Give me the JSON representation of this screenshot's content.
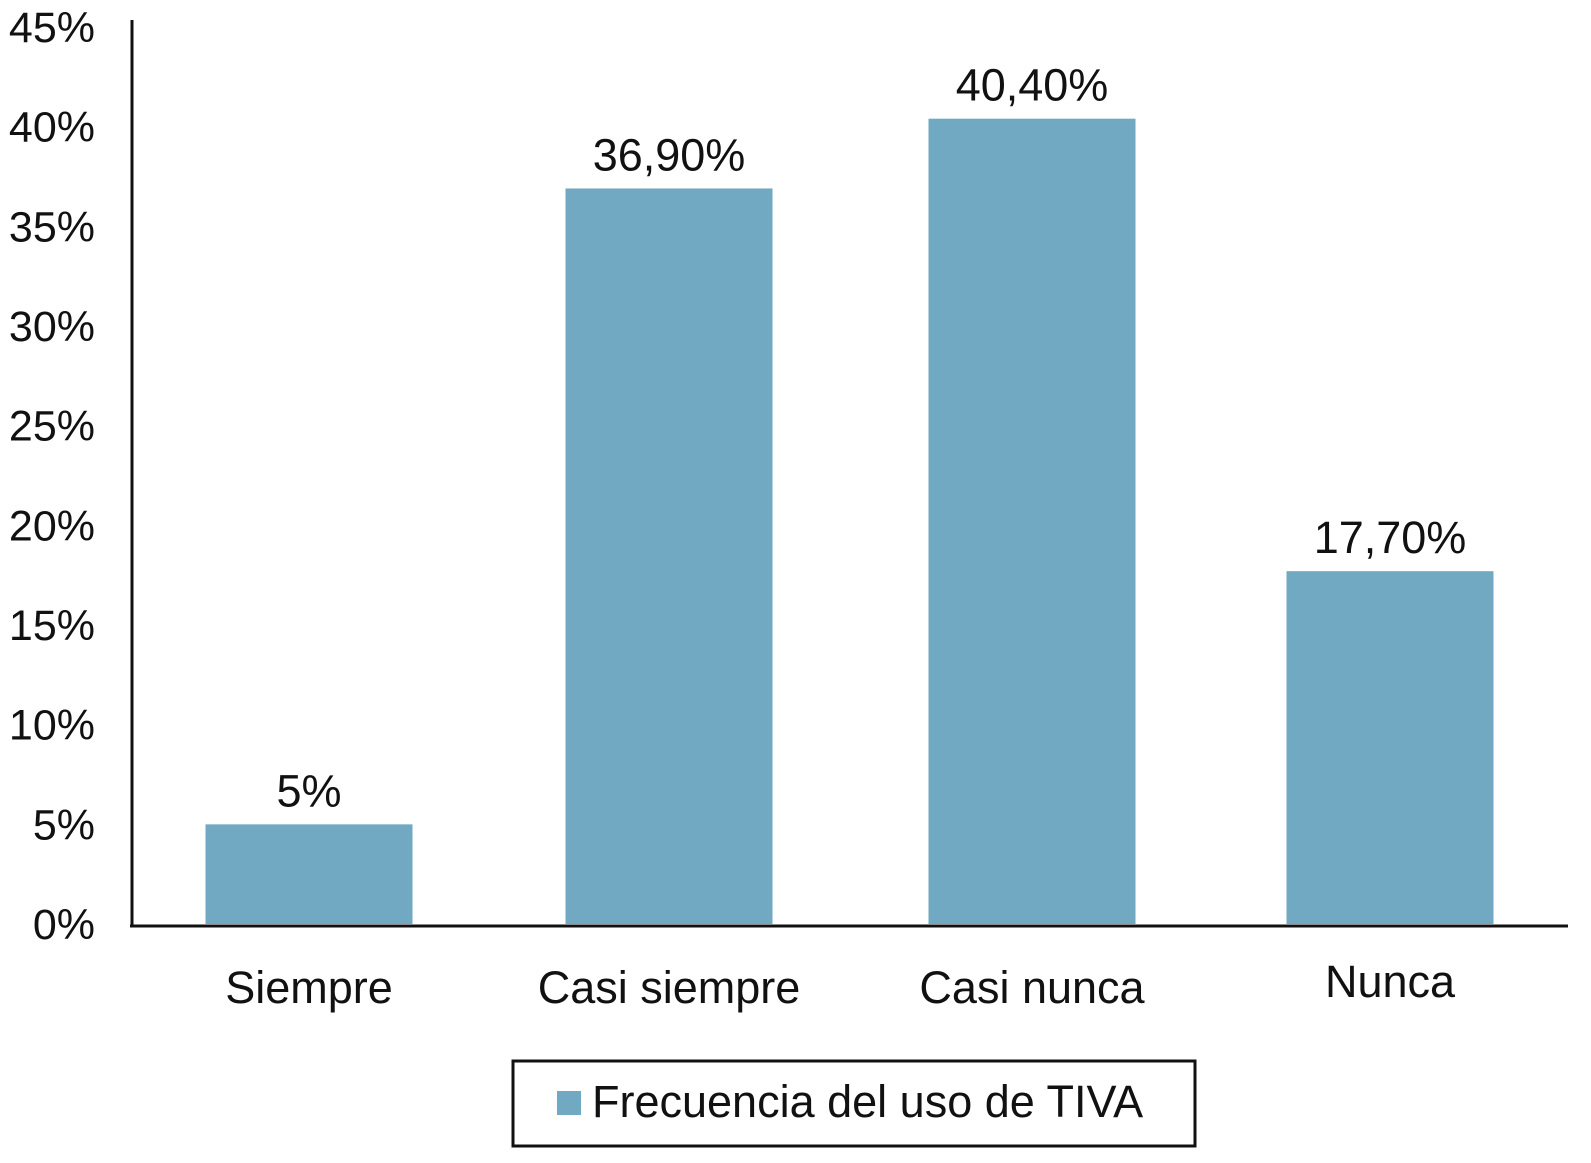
{
  "chart_data": {
    "type": "bar",
    "title": "",
    "xlabel": "",
    "ylabel": "",
    "categories": [
      "Siempre",
      "Casi siempre",
      "Casi nunca",
      "Nunca"
    ],
    "series": [
      {
        "name": "Frecuencia del uso de TIVA",
        "values": [
          5,
          36.9,
          40.4,
          17.7
        ],
        "data_labels": [
          "5%",
          "36,90%",
          "40,40%",
          "17,70%"
        ],
        "color": "#72a9c2"
      }
    ],
    "ylim": [
      0,
      45
    ],
    "y_ticks": [
      0,
      5,
      10,
      15,
      20,
      25,
      30,
      35,
      40,
      45
    ],
    "y_tick_labels": [
      "0%",
      "5%",
      "10%",
      "15%",
      "20%",
      "25%",
      "30%",
      "35%",
      "40%",
      "45%"
    ],
    "grid": false,
    "legend": {
      "placement": "bottom-center",
      "entries": [
        "Frecuencia del uso de TIVA"
      ]
    }
  }
}
